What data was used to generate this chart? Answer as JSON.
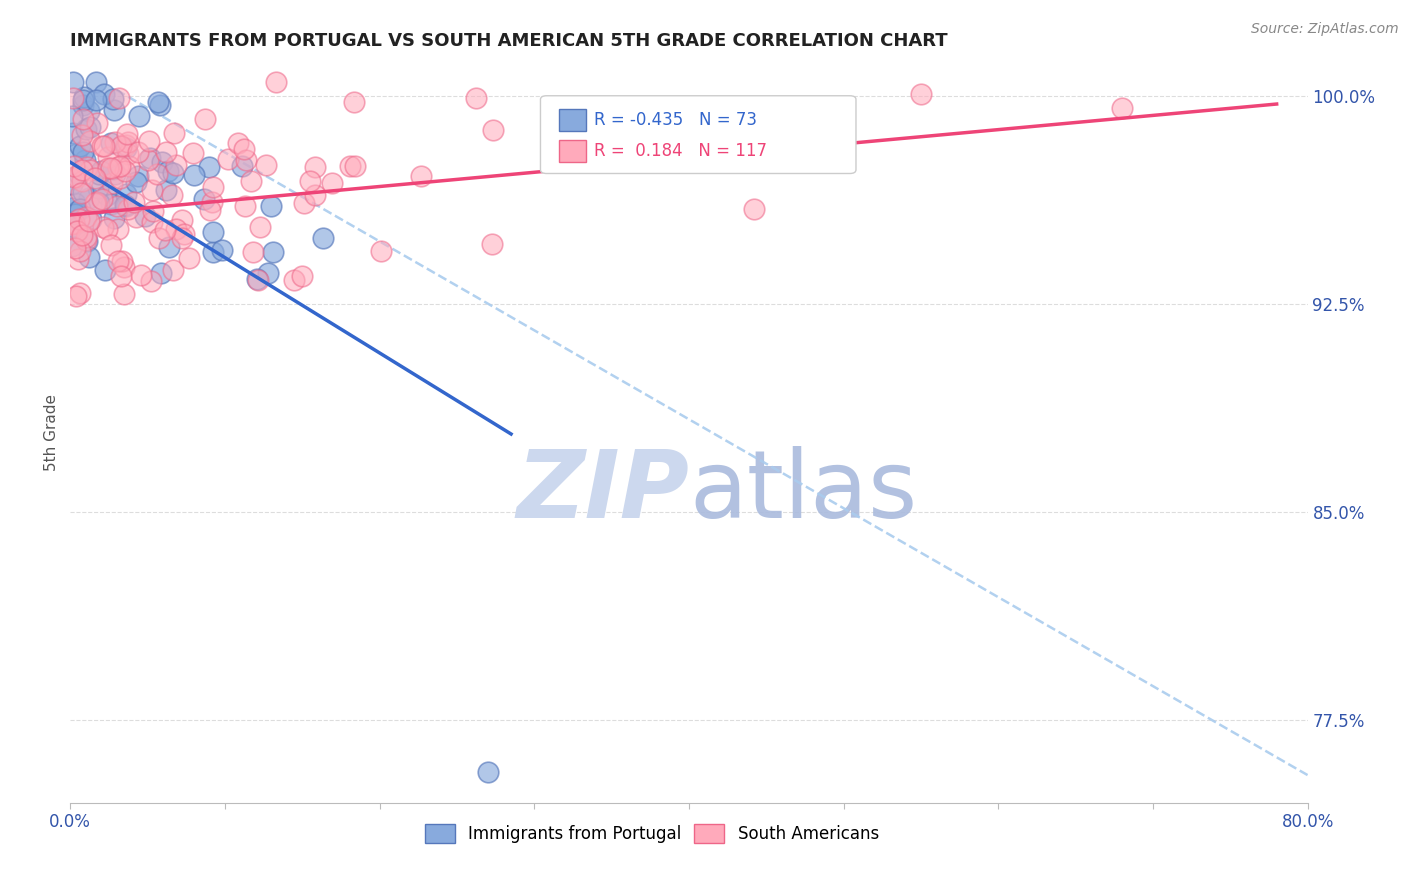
{
  "title": "IMMIGRANTS FROM PORTUGAL VS SOUTH AMERICAN 5TH GRADE CORRELATION CHART",
  "source_text": "Source: ZipAtlas.com",
  "ylabel": "5th Grade",
  "xlim": [
    0.0,
    0.8
  ],
  "ylim": [
    0.745,
    1.012
  ],
  "xtick_values": [
    0.0,
    0.1,
    0.2,
    0.3,
    0.4,
    0.5,
    0.6,
    0.7,
    0.8
  ],
  "xtick_show": [
    0.0,
    0.8
  ],
  "ytick_positions": [
    1.0,
    0.925,
    0.85,
    0.775
  ],
  "ytick_labels": [
    "100.0%",
    "92.5%",
    "85.0%",
    "77.5%"
  ],
  "series1_label": "Immigrants from Portugal",
  "series1_color": "#88aadd",
  "series1_edge_color": "#5577bb",
  "series1_R": -0.435,
  "series1_N": 73,
  "series2_label": "South Americans",
  "series2_color": "#ffaabb",
  "series2_edge_color": "#ee6688",
  "series2_R": 0.184,
  "series2_N": 117,
  "legend_R1": "-0.435",
  "legend_N1": "73",
  "legend_R2": " 0.184",
  "legend_N2": "117",
  "trend1_color": "#3366cc",
  "trend2_color": "#ee4477",
  "diag_color": "#aaccee",
  "watermark_color": "#ccd8ee",
  "background_color": "#ffffff",
  "seed": 99
}
